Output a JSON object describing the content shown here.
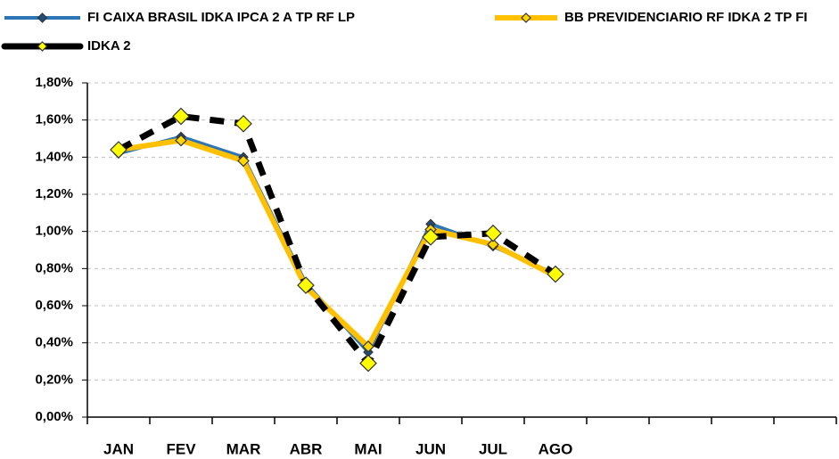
{
  "chart_data": {
    "type": "line",
    "categories": [
      "JAN",
      "FEV",
      "MAR",
      "ABR",
      "MAI",
      "JUN",
      "JUL",
      "AGO",
      null,
      null,
      null,
      null
    ],
    "series": [
      {
        "name": "FI CAIXA BRASIL IDKA IPCA 2 A TP RF LP",
        "color": "#2e75b6",
        "marker_color": "#1f4e79",
        "values": [
          1.42,
          1.51,
          1.4,
          0.72,
          0.35,
          1.04,
          0.92,
          0.77,
          null,
          null,
          null,
          null
        ]
      },
      {
        "name": "BB PREVIDENCIARIO RF IDKA 2 TP FI",
        "color": "#ffc000",
        "marker_color": "#ffd700",
        "values": [
          1.44,
          1.49,
          1.38,
          0.7,
          0.38,
          1.01,
          0.93,
          0.76,
          null,
          null,
          null,
          null
        ]
      },
      {
        "name": "IDKA 2",
        "color": "#000000",
        "marker_color": "#ffff00",
        "linestyle": "dashed",
        "values": [
          1.44,
          1.62,
          1.58,
          0.71,
          0.29,
          0.97,
          0.99,
          0.77,
          null,
          null,
          null,
          null
        ]
      }
    ],
    "ylim": [
      0,
      1.8
    ],
    "yticks": [
      {
        "value": 0,
        "label": "0,00%"
      },
      {
        "value": 0.2,
        "label": "0,20%"
      },
      {
        "value": 0.4,
        "label": "0,40%"
      },
      {
        "value": 0.6,
        "label": "0,60%"
      },
      {
        "value": 0.8,
        "label": "0,80%"
      },
      {
        "value": 1.0,
        "label": "1,00%"
      },
      {
        "value": 1.2,
        "label": "1,20%"
      },
      {
        "value": 1.4,
        "label": "1,40%"
      },
      {
        "value": 1.6,
        "label": "1,60%"
      },
      {
        "value": 1.8,
        "label": "1,80%"
      }
    ],
    "grid": true,
    "legend": "top"
  }
}
